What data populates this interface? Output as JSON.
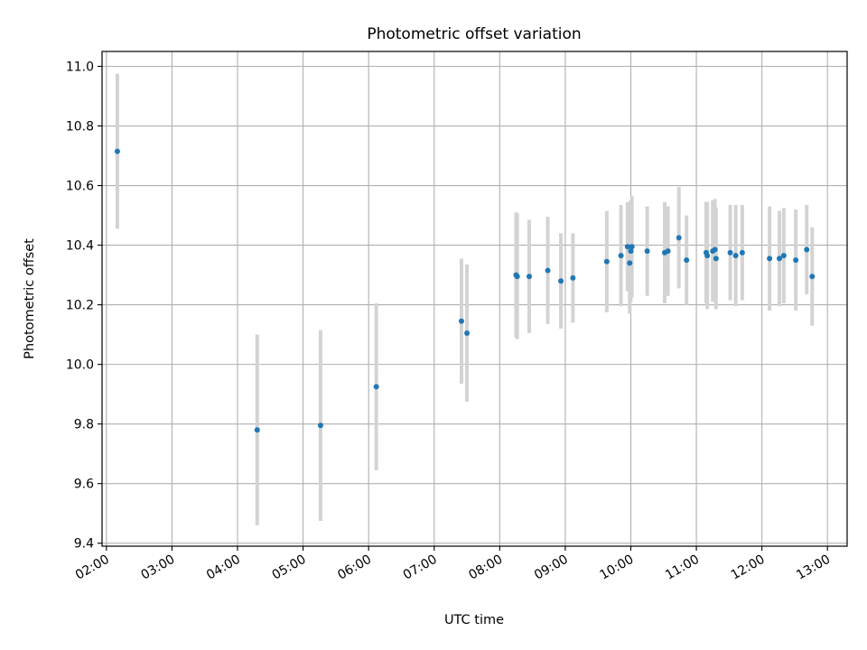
{
  "chart_data": {
    "type": "scatter",
    "title": "Photometric offset variation",
    "xlabel": "UTC time",
    "ylabel": "Photometric offset",
    "grid": true,
    "xlim": [
      "01:56",
      "13:18"
    ],
    "ylim": [
      9.39,
      11.05
    ],
    "x_ticks": [
      "02:00",
      "03:00",
      "04:00",
      "05:00",
      "06:00",
      "07:00",
      "08:00",
      "09:00",
      "10:00",
      "11:00",
      "12:00",
      "13:00"
    ],
    "y_ticks": [
      9.4,
      9.6,
      9.8,
      10.0,
      10.2,
      10.4,
      10.6,
      10.8,
      11.0
    ],
    "y_tick_labels": [
      "9.4",
      "9.6",
      "9.8",
      "10.0",
      "10.2",
      "10.4",
      "10.6",
      "10.8",
      "11.0"
    ],
    "colors": {
      "point": "#1f77b4",
      "errorbar": "#d3d3d3",
      "grid": "#b0b0b0"
    },
    "points": [
      {
        "time": "02:10",
        "y": 10.715,
        "err": 0.26
      },
      {
        "time": "04:18",
        "y": 9.78,
        "err": 0.32
      },
      {
        "time": "05:16",
        "y": 9.795,
        "err": 0.32
      },
      {
        "time": "06:07",
        "y": 9.925,
        "err": 0.28
      },
      {
        "time": "07:25",
        "y": 10.145,
        "err": 0.21
      },
      {
        "time": "07:30",
        "y": 10.105,
        "err": 0.23
      },
      {
        "time": "08:15",
        "y": 10.3,
        "err": 0.21
      },
      {
        "time": "08:16",
        "y": 10.295,
        "err": 0.21
      },
      {
        "time": "08:27",
        "y": 10.295,
        "err": 0.19
      },
      {
        "time": "08:44",
        "y": 10.315,
        "err": 0.18
      },
      {
        "time": "08:56",
        "y": 10.28,
        "err": 0.16
      },
      {
        "time": "09:07",
        "y": 10.29,
        "err": 0.15
      },
      {
        "time": "09:38",
        "y": 10.345,
        "err": 0.17
      },
      {
        "time": "09:51",
        "y": 10.365,
        "err": 0.17
      },
      {
        "time": "09:57",
        "y": 10.395,
        "err": 0.15
      },
      {
        "time": "09:59",
        "y": 10.34,
        "err": 0.17
      },
      {
        "time": "10:00",
        "y": 10.38,
        "err": 0.17
      },
      {
        "time": "10:01",
        "y": 10.395,
        "err": 0.17
      },
      {
        "time": "10:15",
        "y": 10.38,
        "err": 0.15
      },
      {
        "time": "10:31",
        "y": 10.375,
        "err": 0.17
      },
      {
        "time": "10:34",
        "y": 10.38,
        "err": 0.15
      },
      {
        "time": "10:44",
        "y": 10.425,
        "err": 0.17
      },
      {
        "time": "10:51",
        "y": 10.35,
        "err": 0.15
      },
      {
        "time": "11:09",
        "y": 10.375,
        "err": 0.17
      },
      {
        "time": "11:10",
        "y": 10.365,
        "err": 0.18
      },
      {
        "time": "11:15",
        "y": 10.38,
        "err": 0.17
      },
      {
        "time": "11:17",
        "y": 10.385,
        "err": 0.17
      },
      {
        "time": "11:18",
        "y": 10.355,
        "err": 0.17
      },
      {
        "time": "11:31",
        "y": 10.375,
        "err": 0.16
      },
      {
        "time": "11:36",
        "y": 10.365,
        "err": 0.17
      },
      {
        "time": "11:42",
        "y": 10.375,
        "err": 0.16
      },
      {
        "time": "12:07",
        "y": 10.355,
        "err": 0.175
      },
      {
        "time": "12:16",
        "y": 10.355,
        "err": 0.16
      },
      {
        "time": "12:20",
        "y": 10.365,
        "err": 0.16
      },
      {
        "time": "12:31",
        "y": 10.35,
        "err": 0.17
      },
      {
        "time": "12:41",
        "y": 10.385,
        "err": 0.15
      },
      {
        "time": "12:46",
        "y": 10.295,
        "err": 0.165
      }
    ]
  }
}
